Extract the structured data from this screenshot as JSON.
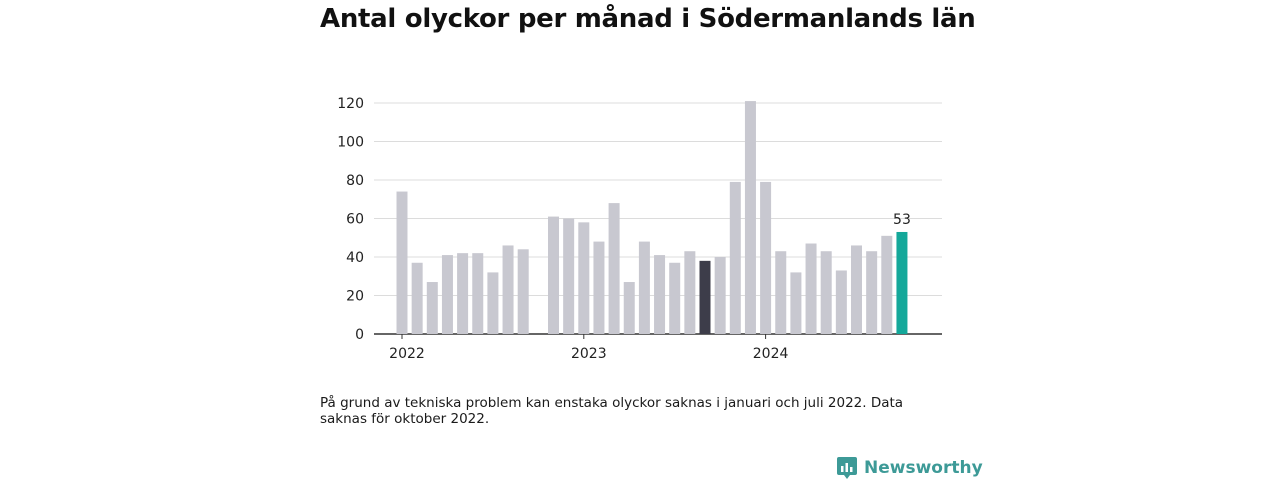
{
  "title": "Antal olyckor per månad i Södermanlands län",
  "note": "På grund av tekniska problem kan enstaka olyckor saknas i januari och juli 2022. Data saknas för oktober 2022.",
  "brand": {
    "name": "Newsworthy",
    "icon": "newsworthy-logo-icon",
    "color": "#3d9a97"
  },
  "chart_data": {
    "type": "bar",
    "ylim": [
      0,
      120
    ],
    "yticks": [
      0,
      20,
      40,
      60,
      80,
      100,
      120
    ],
    "xtick_labels": [
      {
        "label": "2022",
        "index": 0
      },
      {
        "label": "2023",
        "index": 12
      },
      {
        "label": "2024",
        "index": 24
      }
    ],
    "grid": true,
    "colors": {
      "default": "#c8c8d0",
      "highlight_dark": "#3d3d4a",
      "latest": "#14a89a"
    },
    "categories": [
      "2022-01",
      "2022-02",
      "2022-03",
      "2022-04",
      "2022-05",
      "2022-06",
      "2022-07",
      "2022-08",
      "2022-09",
      "2022-10",
      "2022-11",
      "2022-12",
      "2023-01",
      "2023-02",
      "2023-03",
      "2023-04",
      "2023-05",
      "2023-06",
      "2023-07",
      "2023-08",
      "2023-09",
      "2023-10",
      "2023-11",
      "2023-12",
      "2024-01",
      "2024-02",
      "2024-03",
      "2024-04",
      "2024-05",
      "2024-06",
      "2024-07",
      "2024-08",
      "2024-09",
      "2024-10"
    ],
    "values": [
      74,
      37,
      27,
      41,
      42,
      42,
      32,
      46,
      44,
      null,
      61,
      60,
      58,
      48,
      68,
      27,
      48,
      41,
      37,
      43,
      38,
      40,
      79,
      121,
      79,
      43,
      32,
      47,
      43,
      33,
      46,
      43,
      51,
      53
    ],
    "highlights": [
      {
        "index": 20,
        "color": "highlight_dark"
      },
      {
        "index": 33,
        "color": "latest",
        "label": "53"
      }
    ]
  }
}
